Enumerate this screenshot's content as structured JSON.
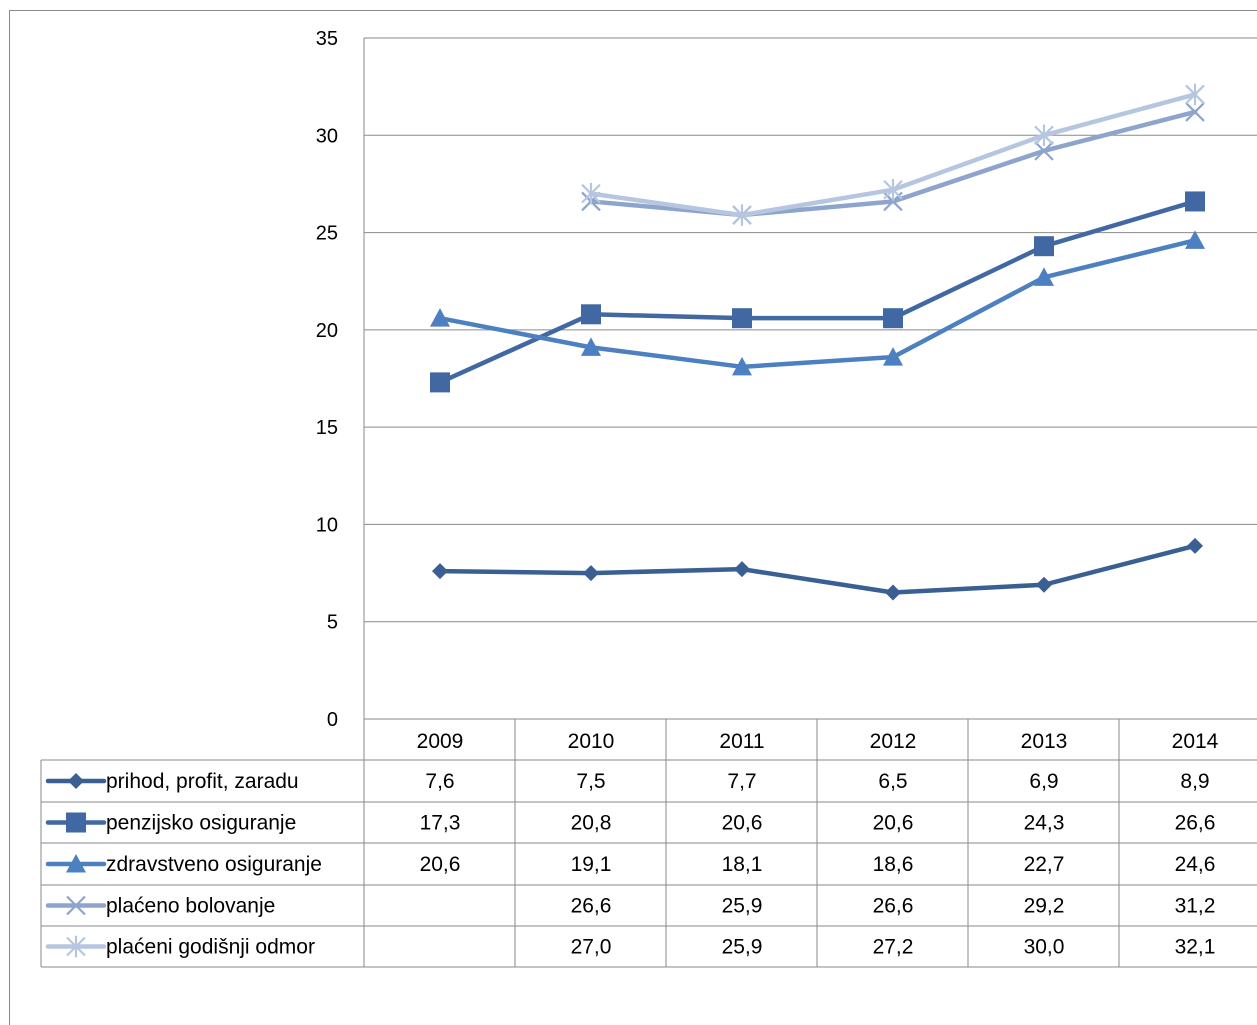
{
  "chart_data": {
    "type": "line",
    "title": "",
    "xlabel": "",
    "ylabel": "",
    "ylim": [
      0,
      35
    ],
    "yticks": [
      0,
      5,
      10,
      15,
      20,
      25,
      30,
      35
    ],
    "grid": "horizontal",
    "legend_placement": "data-table-below",
    "categories": [
      "2009",
      "2010",
      "2011",
      "2012",
      "2013",
      "2014"
    ],
    "series": [
      {
        "name": "prihod, profit, zaradu",
        "marker": "diamond",
        "color": "#3a5f93",
        "values": [
          7.6,
          7.5,
          7.7,
          6.5,
          6.9,
          8.9
        ],
        "labels": [
          "7,6",
          "7,5",
          "7,7",
          "6,5",
          "6,9",
          "8,9"
        ]
      },
      {
        "name": "penzijsko osiguranje",
        "marker": "square",
        "color": "#4268a3",
        "values": [
          17.3,
          20.8,
          20.6,
          20.6,
          24.3,
          26.6
        ],
        "labels": [
          "17,3",
          "20,8",
          "20,6",
          "20,6",
          "24,3",
          "26,6"
        ]
      },
      {
        "name": "zdravstveno osiguranje",
        "marker": "triangle",
        "color": "#4d80c1",
        "values": [
          20.6,
          19.1,
          18.1,
          18.6,
          22.7,
          24.6
        ],
        "labels": [
          "20,6",
          "19,1",
          "18,1",
          "18,6",
          "22,7",
          "24,6"
        ]
      },
      {
        "name": "plaćeno bolovanje",
        "marker": "x",
        "color": "#8da4cc",
        "values": [
          null,
          26.6,
          25.9,
          26.6,
          29.2,
          31.2
        ],
        "labels": [
          "",
          "26,6",
          "25,9",
          "26,6",
          "29,2",
          "31,2"
        ]
      },
      {
        "name": "plaćeni godišnji odmor",
        "marker": "star",
        "color": "#b7c6e0",
        "values": [
          null,
          27.0,
          25.9,
          27.2,
          30.0,
          32.1
        ],
        "labels": [
          "",
          "27,0",
          "25,9",
          "27,2",
          "30,0",
          "32,1"
        ]
      }
    ]
  }
}
